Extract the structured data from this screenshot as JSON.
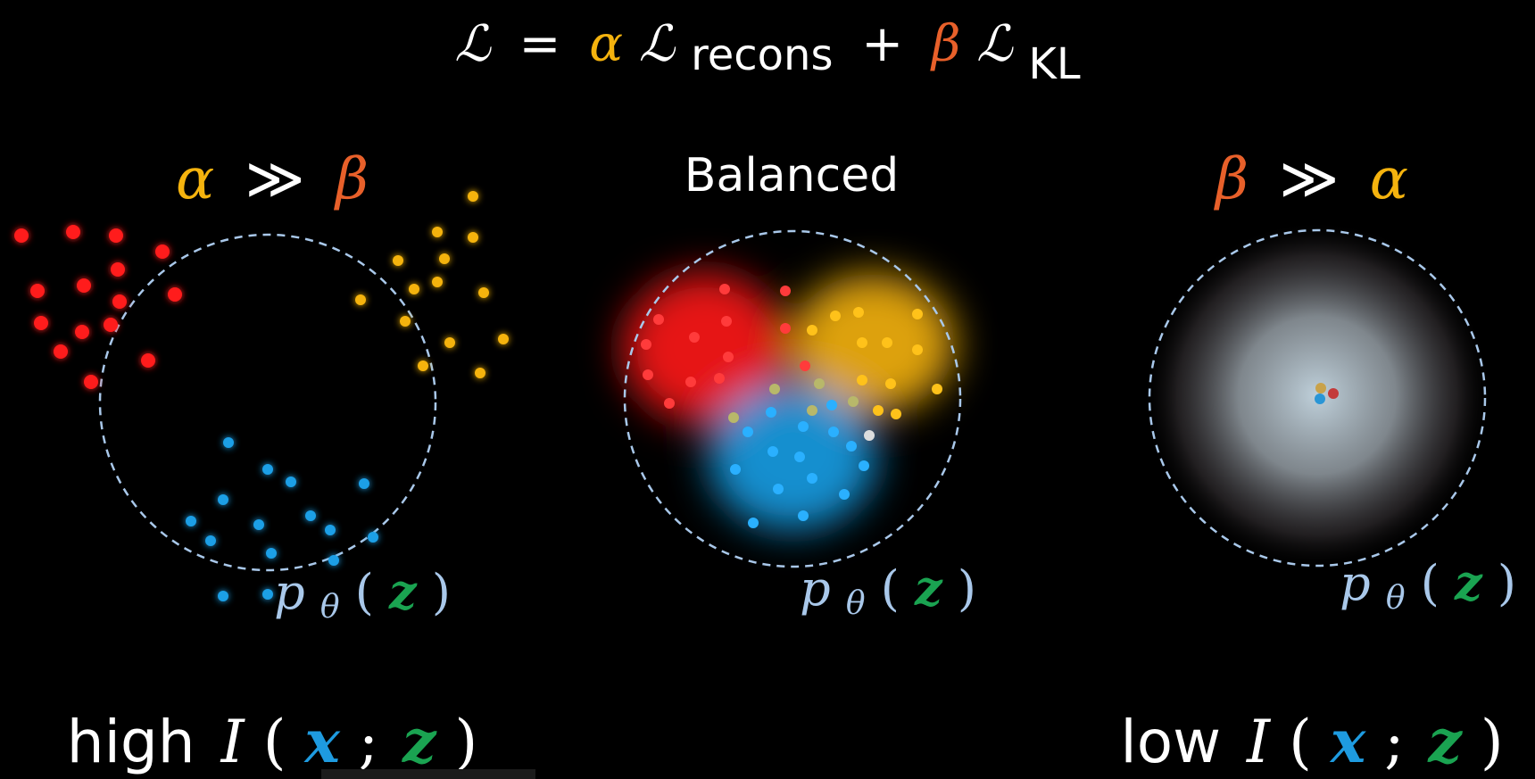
{
  "colors": {
    "background": "#000000",
    "alpha": "#f5b30e",
    "beta": "#e8602a",
    "text": "#ffffff",
    "prior": "#a9c8ea",
    "z_green": "#1aa351",
    "x_blue": "#1e9be0",
    "red_cluster": "#ff1a1a",
    "yellow_cluster": "#f5b30e",
    "blue_cluster": "#1a9fe6"
  },
  "formula": {
    "loss": "ℒ",
    "equals": "=",
    "alpha": "α",
    "recon_symbol": "ℒ",
    "recon_sub": "recons",
    "plus": "+",
    "beta": "β",
    "kl_symbol": "ℒ",
    "kl_sub": "KL"
  },
  "panels": [
    {
      "heading_left": "α",
      "heading_op": "≫",
      "heading_right": "β",
      "prior_p": "p",
      "prior_sub": "θ",
      "prior_open": "(",
      "prior_z": "z",
      "prior_close": ")",
      "footer_word": "high",
      "mi_symbol": "I",
      "mi_open": "(",
      "mi_x": "x",
      "mi_sep": ";",
      "mi_z": "z",
      "mi_close": ")"
    },
    {
      "heading": "Balanced",
      "prior_p": "p",
      "prior_sub": "θ",
      "prior_open": "(",
      "prior_z": "z",
      "prior_close": ")"
    },
    {
      "heading_left": "β",
      "heading_op": "≫",
      "heading_right": "α",
      "prior_p": "p",
      "prior_sub": "θ",
      "prior_open": "(",
      "prior_z": "z",
      "prior_close": ")",
      "footer_word": "low",
      "mi_symbol": "I",
      "mi_open": "(",
      "mi_x": "x",
      "mi_sep": ";",
      "mi_z": "z",
      "mi_close": ")"
    }
  ]
}
